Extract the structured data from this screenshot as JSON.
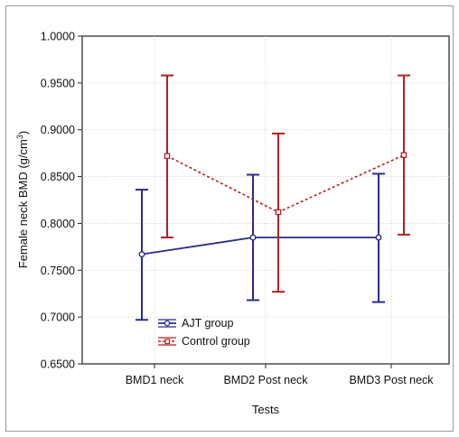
{
  "chart_data": {
    "type": "line",
    "categories": [
      "BMD1 neck",
      "BMD2 Post neck",
      "BMD3 Post neck"
    ],
    "xlabel": "Tests",
    "ylabel_main": "Female neck BMD (g/cm",
    "ylabel_sup": "3",
    "ylabel_close": ")",
    "ylim": [
      0.65,
      1.0
    ],
    "y_ticks": [
      "1.0000",
      "0.9500",
      "0.9000",
      "0.8500",
      "0.8000",
      "0.7500",
      "0.7000",
      "0.6500"
    ],
    "grid": true,
    "legend_position": "bottom-left",
    "series": [
      {
        "name": "AJT group",
        "color": "#2b2b8c",
        "line_style": "solid",
        "values": [
          0.767,
          0.785,
          0.785
        ],
        "lower": [
          0.697,
          0.718,
          0.716
        ],
        "upper": [
          0.836,
          0.852,
          0.853
        ]
      },
      {
        "name": "Control group",
        "color": "#b52020",
        "line_style": "dashed",
        "values": [
          0.872,
          0.812,
          0.873
        ],
        "lower": [
          0.785,
          0.727,
          0.788
        ],
        "upper": [
          0.958,
          0.896,
          0.958
        ]
      }
    ]
  }
}
